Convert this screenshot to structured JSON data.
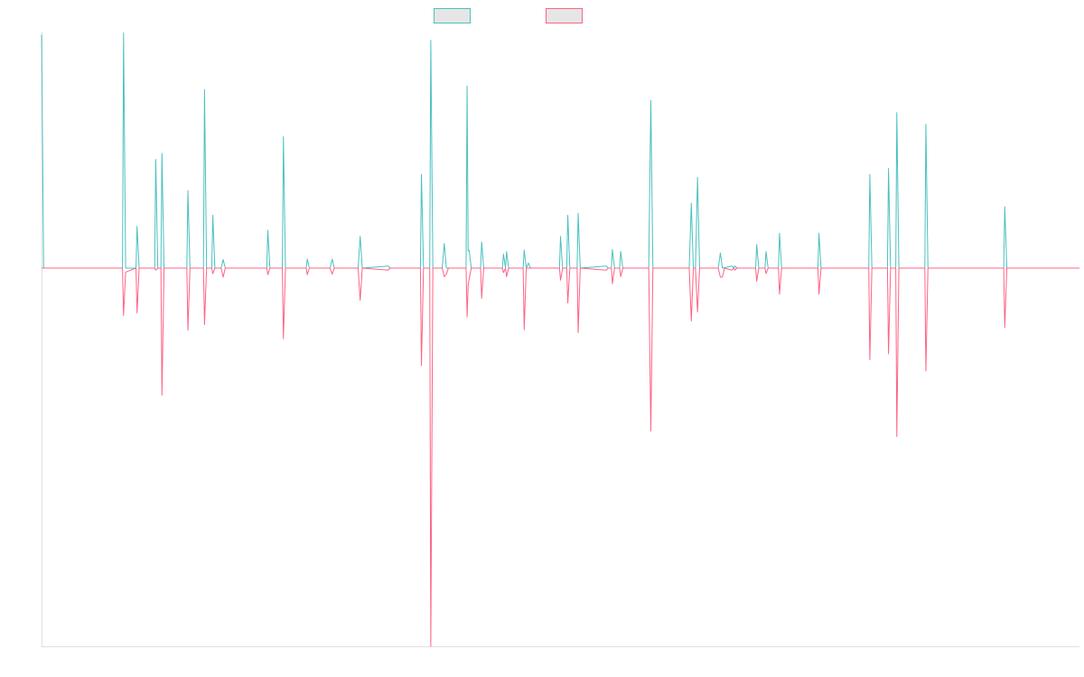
{
  "colors": {
    "series_a": "#4bc0c0",
    "series_b": "#ff6384",
    "axis": "#e0e0e0",
    "swatch_fill": "#e6e6e6"
  },
  "chart_data": {
    "type": "line",
    "legend": {
      "position": "top"
    },
    "grid": false,
    "x_range": [
      0,
      1000
    ],
    "ylim": [
      -0.75,
      0.47
    ],
    "series": [
      {
        "values": [
          [
            0,
            0.464
          ],
          [
            2,
            0
          ],
          [
            78,
            0
          ],
          [
            79,
            0.467
          ],
          [
            81,
            0
          ],
          [
            91,
            0
          ],
          [
            92,
            0.083
          ],
          [
            94,
            0
          ],
          [
            109,
            0
          ],
          [
            110,
            0.216
          ],
          [
            112,
            0
          ],
          [
            115,
            0
          ],
          [
            116,
            0.228
          ],
          [
            118,
            0
          ],
          [
            140,
            0
          ],
          [
            141,
            0.154
          ],
          [
            143,
            0
          ],
          [
            156,
            0
          ],
          [
            157,
            0.355
          ],
          [
            159,
            0
          ],
          [
            164,
            0
          ],
          [
            165,
            0.105
          ],
          [
            167,
            0
          ],
          [
            173,
            0
          ],
          [
            175,
            0.017
          ],
          [
            177,
            0
          ],
          [
            217,
            0
          ],
          [
            218,
            0.075
          ],
          [
            220,
            0
          ],
          [
            232,
            0
          ],
          [
            233,
            0.261
          ],
          [
            235,
            0
          ],
          [
            255,
            0
          ],
          [
            256,
            0.018
          ],
          [
            258,
            0
          ],
          [
            278,
            0
          ],
          [
            280,
            0.018
          ],
          [
            282,
            0
          ],
          [
            305,
            0
          ],
          [
            307,
            0.063
          ],
          [
            309,
            0
          ],
          [
            334,
            0.004
          ],
          [
            336,
            0
          ],
          [
            365,
            0
          ],
          [
            366,
            0.186
          ],
          [
            368,
            0
          ],
          [
            374,
            0
          ],
          [
            375,
            0.453
          ],
          [
            377,
            0
          ],
          [
            386,
            0
          ],
          [
            388,
            0.049
          ],
          [
            390,
            0
          ],
          [
            409,
            0
          ],
          [
            410,
            0.362
          ],
          [
            411,
            0.034
          ],
          [
            412,
            0.035
          ],
          [
            414,
            0
          ],
          [
            423,
            0
          ],
          [
            424,
            0.052
          ],
          [
            426,
            0
          ],
          [
            444,
            0
          ],
          [
            445,
            0.028
          ],
          [
            447,
            0
          ],
          [
            448,
            0.033
          ],
          [
            450,
            0
          ],
          [
            464,
            0
          ],
          [
            465,
            0.036
          ],
          [
            467,
            0
          ],
          [
            469,
            0.01
          ],
          [
            471,
            0
          ],
          [
            499,
            0
          ],
          [
            500,
            0.063
          ],
          [
            502,
            0
          ],
          [
            506,
            0
          ],
          [
            507,
            0.105
          ],
          [
            509,
            0
          ],
          [
            516,
            0
          ],
          [
            517,
            0.109
          ],
          [
            519,
            0
          ],
          [
            544,
            0.004
          ],
          [
            546,
            0
          ],
          [
            549,
            0
          ],
          [
            550,
            0.037
          ],
          [
            552,
            0
          ],
          [
            557,
            0
          ],
          [
            558,
            0.033
          ],
          [
            560,
            0
          ],
          [
            585,
            0
          ],
          [
            587,
            0.333
          ],
          [
            589,
            0
          ],
          [
            624,
            0
          ],
          [
            626,
            0.129
          ],
          [
            628,
            0
          ],
          [
            630,
            0
          ],
          [
            632,
            0.18
          ],
          [
            634,
            0
          ],
          [
            652,
            0
          ],
          [
            654,
            0.03
          ],
          [
            656,
            0
          ],
          [
            665,
            0.004
          ],
          [
            667,
            0
          ],
          [
            668,
            0.004
          ],
          [
            670,
            0
          ],
          [
            688,
            0
          ],
          [
            689,
            0.047
          ],
          [
            691,
            0
          ],
          [
            697,
            0
          ],
          [
            698,
            0.033
          ],
          [
            700,
            0
          ],
          [
            710,
            0
          ],
          [
            711,
            0.069
          ],
          [
            713,
            0
          ],
          [
            748,
            0
          ],
          [
            749,
            0.069
          ],
          [
            751,
            0
          ],
          [
            797,
            0
          ],
          [
            798,
            0.186
          ],
          [
            800,
            0
          ],
          [
            815,
            0
          ],
          [
            816,
            0.198
          ],
          [
            818,
            0
          ],
          [
            823,
            0
          ],
          [
            824,
            0.309
          ],
          [
            826,
            0
          ],
          [
            851,
            0
          ],
          [
            852,
            0.286
          ],
          [
            854,
            0
          ],
          [
            927,
            0
          ],
          [
            928,
            0.122
          ],
          [
            930,
            0
          ],
          [
            1000,
            0
          ]
        ]
      },
      {
        "values": [
          [
            0,
            0
          ],
          [
            78,
            0
          ],
          [
            79,
            -0.094
          ],
          [
            81,
            -0.008
          ],
          [
            91,
            0
          ],
          [
            92,
            -0.089
          ],
          [
            94,
            0
          ],
          [
            109,
            0
          ],
          [
            110,
            -0.004
          ],
          [
            112,
            0
          ],
          [
            115,
            0
          ],
          [
            116,
            -0.252
          ],
          [
            118,
            0
          ],
          [
            140,
            0
          ],
          [
            141,
            -0.123
          ],
          [
            143,
            0
          ],
          [
            156,
            0
          ],
          [
            157,
            -0.112
          ],
          [
            159,
            0
          ],
          [
            164,
            0
          ],
          [
            165,
            -0.011
          ],
          [
            167,
            0
          ],
          [
            173,
            0
          ],
          [
            175,
            -0.018
          ],
          [
            177,
            0
          ],
          [
            217,
            0
          ],
          [
            218,
            -0.013
          ],
          [
            220,
            0
          ],
          [
            232,
            0
          ],
          [
            233,
            -0.14
          ],
          [
            235,
            0
          ],
          [
            255,
            0
          ],
          [
            256,
            -0.013
          ],
          [
            258,
            0
          ],
          [
            278,
            0
          ],
          [
            280,
            -0.012
          ],
          [
            282,
            0
          ],
          [
            305,
            0
          ],
          [
            307,
            -0.064
          ],
          [
            309,
            0
          ],
          [
            334,
            -0.004
          ],
          [
            336,
            0
          ],
          [
            365,
            0
          ],
          [
            366,
            -0.193
          ],
          [
            368,
            0
          ],
          [
            374,
            0
          ],
          [
            375,
            -0.75
          ],
          [
            377,
            0
          ],
          [
            386,
            0
          ],
          [
            388,
            -0.017
          ],
          [
            390,
            -0.012
          ],
          [
            392,
            0
          ],
          [
            409,
            0
          ],
          [
            410,
            -0.097
          ],
          [
            411,
            -0.034
          ],
          [
            412,
            -0.021
          ],
          [
            414,
            0
          ],
          [
            423,
            0
          ],
          [
            424,
            -0.06
          ],
          [
            426,
            0
          ],
          [
            444,
            0
          ],
          [
            445,
            -0.009
          ],
          [
            447,
            0
          ],
          [
            448,
            -0.017
          ],
          [
            450,
            0
          ],
          [
            464,
            0
          ],
          [
            465,
            -0.122
          ],
          [
            467,
            0
          ],
          [
            499,
            0
          ],
          [
            500,
            -0.024
          ],
          [
            502,
            0
          ],
          [
            506,
            0
          ],
          [
            507,
            -0.069
          ],
          [
            509,
            0
          ],
          [
            516,
            0
          ],
          [
            517,
            -0.128
          ],
          [
            519,
            0
          ],
          [
            544,
            -0.004
          ],
          [
            546,
            0
          ],
          [
            549,
            0
          ],
          [
            550,
            -0.031
          ],
          [
            552,
            0
          ],
          [
            557,
            0
          ],
          [
            558,
            -0.017
          ],
          [
            560,
            0
          ],
          [
            585,
            0
          ],
          [
            587,
            -0.323
          ],
          [
            589,
            0
          ],
          [
            624,
            0
          ],
          [
            626,
            -0.105
          ],
          [
            628,
            0
          ],
          [
            630,
            0
          ],
          [
            632,
            -0.087
          ],
          [
            634,
            0
          ],
          [
            652,
            0
          ],
          [
            654,
            -0.018
          ],
          [
            656,
            -0.018
          ],
          [
            658,
            0
          ],
          [
            665,
            -0.004
          ],
          [
            667,
            0
          ],
          [
            668,
            -0.004
          ],
          [
            670,
            0
          ],
          [
            688,
            0
          ],
          [
            689,
            -0.026
          ],
          [
            691,
            0
          ],
          [
            697,
            0
          ],
          [
            698,
            -0.011
          ],
          [
            700,
            0
          ],
          [
            710,
            0
          ],
          [
            711,
            -0.052
          ],
          [
            713,
            0
          ],
          [
            748,
            0
          ],
          [
            749,
            -0.052
          ],
          [
            751,
            0
          ],
          [
            797,
            0
          ],
          [
            798,
            -0.182
          ],
          [
            800,
            0
          ],
          [
            815,
            0
          ],
          [
            816,
            -0.17
          ],
          [
            818,
            0
          ],
          [
            823,
            0
          ],
          [
            824,
            -0.334
          ],
          [
            826,
            0
          ],
          [
            851,
            0
          ],
          [
            852,
            -0.204
          ],
          [
            854,
            0
          ],
          [
            927,
            0
          ],
          [
            928,
            -0.118
          ],
          [
            930,
            0
          ],
          [
            1000,
            0
          ]
        ]
      }
    ]
  }
}
